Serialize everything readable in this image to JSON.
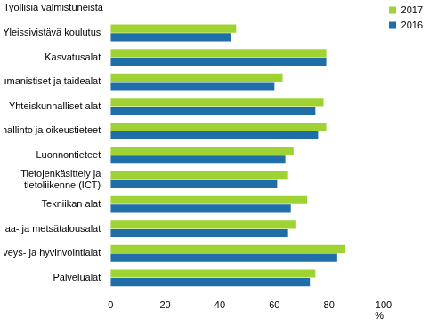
{
  "chart_data": {
    "type": "bar",
    "orientation": "horizontal",
    "title": "Työllisiä valmistuneista",
    "x_label": "%",
    "categories": [
      "Yleissivistävä koulutus",
      "Kasvatusalat",
      "Humanistiset ja taidealat",
      "Yhteiskunnalliset alat",
      "Kauppa, hallinto ja oikeustieteet",
      "Luonnontieteet",
      [
        "Tietojenkäsittely ja",
        "tietoliikenne (ICT)"
      ],
      "Tekniikan alat",
      "Maa- ja metsätalousalat",
      "Terveys- ja hyvinvointialat",
      "Palvelualat"
    ],
    "series": [
      {
        "name": "2017",
        "color": "#9fd334",
        "values": [
          46,
          79,
          63,
          78,
          79,
          67,
          65,
          72,
          68,
          86,
          75
        ]
      },
      {
        "name": "2016",
        "color": "#1f6ea8",
        "values": [
          44,
          79,
          60,
          75,
          76,
          64,
          61,
          66,
          65,
          83,
          73
        ]
      }
    ],
    "xlim": [
      0,
      100
    ],
    "xticks": [
      0,
      20,
      40,
      60,
      80,
      100
    ],
    "grid": false,
    "legend": "upper right"
  }
}
